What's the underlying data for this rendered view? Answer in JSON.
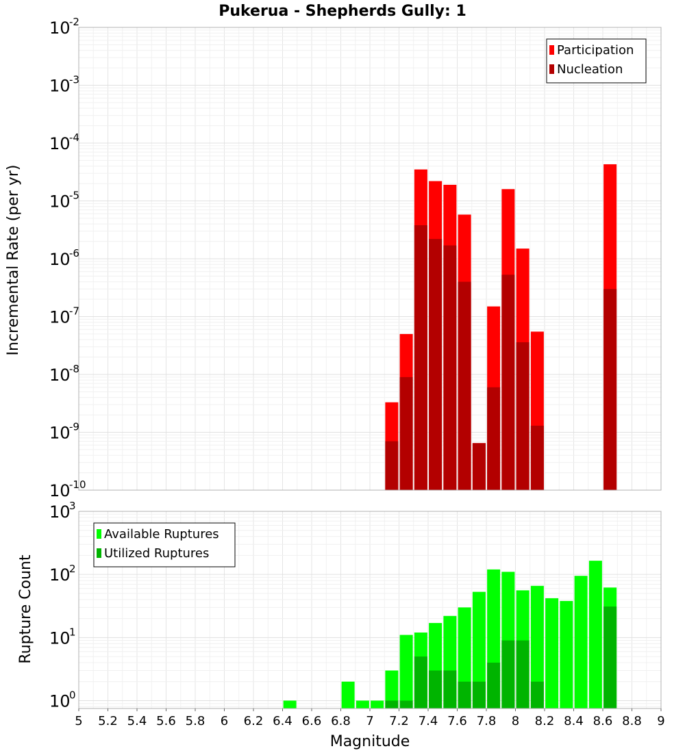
{
  "chart_data": [
    {
      "type": "bar",
      "title": "Pukerua - Shepherds Gully: 1",
      "xlabel": "Magnitude",
      "ylabel": "Incremental Rate (per yr)",
      "yscale": "log",
      "ylim": [
        1e-10,
        0.01
      ],
      "xlim": [
        5,
        9
      ],
      "y_tick_base": "10",
      "y_tick_exponents": [
        "-10",
        "-9",
        "-8",
        "-7",
        "-6",
        "-5",
        "-4",
        "-3",
        "-2"
      ],
      "legend": "top-right",
      "grid": true,
      "series": [
        {
          "name": "Participation",
          "color": "#ff0000",
          "x": [
            7.15,
            7.25,
            7.35,
            7.45,
            7.55,
            7.65,
            7.75,
            7.85,
            7.95,
            8.05,
            8.15,
            8.65
          ],
          "values": [
            3.3e-09,
            5e-08,
            3.5e-05,
            2.2e-05,
            1.9e-05,
            5.8e-06,
            6.5e-10,
            1.5e-07,
            1.6e-05,
            1.5e-06,
            5.5e-08,
            4.3e-05
          ]
        },
        {
          "name": "Nucleation",
          "color": "#b30000",
          "x": [
            7.15,
            7.25,
            7.35,
            7.45,
            7.55,
            7.65,
            7.75,
            7.85,
            7.95,
            8.05,
            8.15,
            8.65
          ],
          "values": [
            7e-10,
            9e-09,
            3.8e-06,
            2.2e-06,
            1.7e-06,
            4e-07,
            6.5e-10,
            6e-09,
            5.3e-07,
            3.6e-08,
            1.3e-09,
            3e-07
          ]
        }
      ]
    },
    {
      "type": "bar",
      "xlabel": "Magnitude",
      "ylabel": "Rupture Count",
      "yscale": "log",
      "ylim": [
        0.75,
        1000
      ],
      "xlim": [
        5,
        9
      ],
      "y_tick_base": "10",
      "y_tick_exponents": [
        "0",
        "1",
        "2",
        "3"
      ],
      "x_tick_labels": [
        "5",
        "5.2",
        "5.4",
        "5.6",
        "5.8",
        "6",
        "6.2",
        "6.4",
        "6.6",
        "6.8",
        "7",
        "7.2",
        "7.4",
        "7.6",
        "7.8",
        "8",
        "8.2",
        "8.4",
        "8.6",
        "8.8",
        "9"
      ],
      "legend": "top-left",
      "grid": true,
      "series": [
        {
          "name": "Available Ruptures",
          "color": "#00ff00",
          "x": [
            6.45,
            6.85,
            6.95,
            7.05,
            7.15,
            7.25,
            7.35,
            7.45,
            7.55,
            7.65,
            7.75,
            7.85,
            7.95,
            8.05,
            8.15,
            8.25,
            8.35,
            8.45,
            8.55,
            8.65
          ],
          "values": [
            1,
            2,
            1,
            1,
            3,
            11,
            12,
            17,
            22,
            30,
            53,
            120,
            110,
            56,
            66,
            42,
            38,
            95,
            165,
            62
          ]
        },
        {
          "name": "Utilized Ruptures",
          "color": "#00b400",
          "x": [
            7.15,
            7.25,
            7.35,
            7.45,
            7.55,
            7.65,
            7.75,
            7.85,
            7.95,
            8.05,
            8.15,
            8.65
          ],
          "values": [
            1,
            1,
            5,
            3,
            3,
            2,
            2,
            4,
            9,
            9,
            2,
            31
          ]
        }
      ]
    }
  ]
}
